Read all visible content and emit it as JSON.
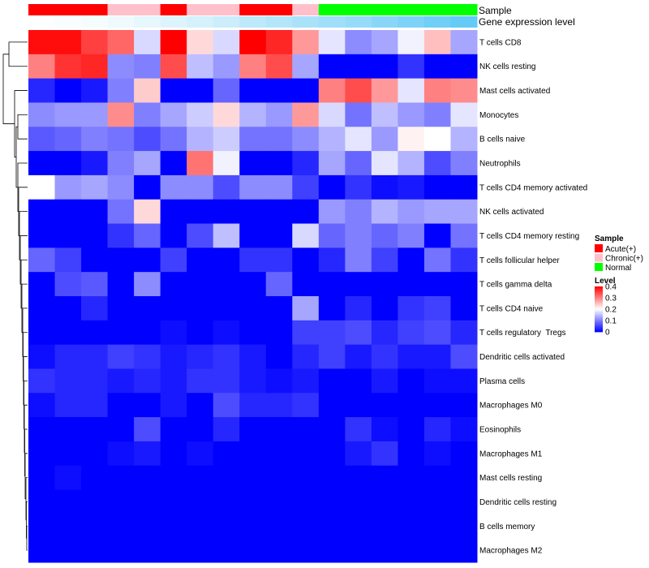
{
  "chart_data": {
    "type": "heatmap",
    "rows": [
      "T cells CD8",
      "NK cells resting",
      "Mast cells activated",
      "Monocytes",
      "B cells naive",
      "Neutrophils",
      "T cells CD4 memory activated",
      "NK cells activated",
      "T cells CD4 memory resting",
      "T cells follicular helper",
      "T cells gamma delta",
      "T cells CD4 naive",
      "T cells regulatory  Tregs",
      "Dendritic cells activated",
      "Plasma cells",
      "Macrophages M0",
      "Eosinophils",
      "Macrophages M1",
      "Mast cells resting",
      "Dendritic cells resting",
      "B cells memory",
      "Macrophages M2"
    ],
    "values": [
      [
        0.39,
        0.39,
        0.35,
        0.32,
        0.17,
        0.4,
        0.23,
        0.17,
        0.4,
        0.37,
        0.28,
        0.18,
        0.11,
        0.13,
        0.19,
        0.25,
        0.13
      ],
      [
        0.3,
        0.36,
        0.37,
        0.11,
        0.1,
        0.34,
        0.15,
        0.12,
        0.3,
        0.34,
        0.13,
        0.0,
        0.0,
        0.0,
        0.04,
        0.0,
        0.0
      ],
      [
        0.03,
        0.0,
        0.02,
        0.1,
        0.24,
        0.0,
        0.0,
        0.08,
        0.0,
        0.0,
        0.0,
        0.3,
        0.34,
        0.28,
        0.18,
        0.3,
        0.29
      ],
      [
        0.11,
        0.12,
        0.12,
        0.29,
        0.1,
        0.13,
        0.16,
        0.23,
        0.14,
        0.12,
        0.28,
        0.17,
        0.09,
        0.15,
        0.12,
        0.1,
        0.18
      ],
      [
        0.07,
        0.08,
        0.1,
        0.09,
        0.06,
        0.09,
        0.14,
        0.16,
        0.09,
        0.09,
        0.11,
        0.14,
        0.18,
        0.12,
        0.21,
        0.2,
        0.14
      ],
      [
        0.0,
        0.0,
        0.02,
        0.1,
        0.13,
        0.0,
        0.31,
        0.19,
        0.0,
        0.0,
        0.03,
        0.13,
        0.08,
        0.18,
        0.14,
        0.06,
        0.1
      ],
      [
        0.2,
        0.12,
        0.13,
        0.11,
        0.0,
        0.11,
        0.11,
        0.06,
        0.11,
        0.11,
        0.05,
        0.0,
        0.04,
        0.01,
        0.02,
        0.0,
        0.0
      ],
      [
        0.0,
        0.0,
        0.0,
        0.09,
        0.23,
        0.0,
        0.0,
        0.0,
        0.0,
        0.0,
        0.0,
        0.12,
        0.1,
        0.14,
        0.12,
        0.13,
        0.13
      ],
      [
        0.0,
        0.0,
        0.0,
        0.04,
        0.08,
        0.0,
        0.06,
        0.15,
        0.0,
        0.0,
        0.17,
        0.08,
        0.1,
        0.08,
        0.1,
        0.0,
        0.09
      ],
      [
        0.08,
        0.05,
        0.0,
        0.0,
        0.0,
        0.05,
        0.0,
        0.0,
        0.04,
        0.04,
        0.0,
        0.03,
        0.1,
        0.05,
        0.0,
        0.09,
        0.04
      ],
      [
        0.0,
        0.06,
        0.07,
        0.0,
        0.11,
        0.0,
        0.0,
        0.0,
        0.0,
        0.08,
        0.0,
        0.0,
        0.0,
        0.0,
        0.0,
        0.0,
        0.0
      ],
      [
        0.0,
        0.0,
        0.03,
        0.0,
        0.0,
        0.0,
        0.0,
        0.0,
        0.0,
        0.0,
        0.13,
        0.0,
        0.03,
        0.0,
        0.04,
        0.05,
        0.0
      ],
      [
        0.0,
        0.0,
        0.0,
        0.0,
        0.0,
        0.01,
        0.0,
        0.01,
        0.0,
        0.0,
        0.05,
        0.05,
        0.06,
        0.03,
        0.05,
        0.06,
        0.03
      ],
      [
        0.01,
        0.03,
        0.03,
        0.05,
        0.04,
        0.02,
        0.03,
        0.04,
        0.02,
        0.0,
        0.03,
        0.05,
        0.02,
        0.04,
        0.02,
        0.02,
        0.06
      ],
      [
        0.04,
        0.03,
        0.03,
        0.02,
        0.03,
        0.02,
        0.04,
        0.04,
        0.02,
        0.01,
        0.02,
        0.0,
        0.0,
        0.02,
        0.0,
        0.01,
        0.01
      ],
      [
        0.01,
        0.03,
        0.03,
        0.0,
        0.0,
        0.02,
        0.0,
        0.06,
        0.03,
        0.03,
        0.04,
        0.0,
        0.0,
        0.0,
        0.0,
        0.0,
        0.0
      ],
      [
        0.0,
        0.0,
        0.0,
        0.0,
        0.06,
        0.0,
        0.0,
        0.03,
        0.0,
        0.0,
        0.0,
        0.0,
        0.04,
        0.01,
        0.0,
        0.03,
        0.01
      ],
      [
        0.0,
        0.0,
        0.0,
        0.01,
        0.02,
        0.0,
        0.01,
        0.0,
        0.0,
        0.0,
        0.0,
        0.0,
        0.02,
        0.04,
        0.0,
        0.01,
        0.0
      ],
      [
        0.0,
        0.01,
        0.0,
        0.0,
        0.0,
        0.0,
        0.0,
        0.0,
        0.0,
        0.0,
        0.0,
        0.0,
        0.0,
        0.0,
        0.0,
        0.0,
        0.0
      ],
      [
        0.0,
        0.0,
        0.0,
        0.0,
        0.0,
        0.0,
        0.0,
        0.0,
        0.0,
        0.0,
        0.0,
        0.0,
        0.0,
        0.0,
        0.0,
        0.0,
        0.0
      ],
      [
        0.0,
        0.0,
        0.0,
        0.0,
        0.0,
        0.0,
        0.0,
        0.0,
        0.0,
        0.0,
        0.0,
        0.0,
        0.0,
        0.0,
        0.0,
        0.0,
        0.0
      ],
      [
        0.0,
        0.0,
        0.0,
        0.0,
        0.0,
        0.0,
        0.0,
        0.0,
        0.0,
        0.0,
        0.0,
        0.0,
        0.0,
        0.0,
        0.0,
        0.0,
        0.0
      ]
    ],
    "column_annotations": {
      "sample_label": "Sample",
      "expression_label": "Gene expression level",
      "sample": [
        "Acute(+)",
        "Acute(+)",
        "Acute(+)",
        "Chronic(+)",
        "Chronic(+)",
        "Acute(+)",
        "Chronic(+)",
        "Chronic(+)",
        "Acute(+)",
        "Acute(+)",
        "Chronic(+)",
        "Normal",
        "Normal",
        "Normal",
        "Normal",
        "Normal",
        "Normal"
      ],
      "expression_level": [
        0.02,
        0.04,
        0.06,
        0.1,
        0.15,
        0.2,
        0.26,
        0.32,
        0.4,
        0.46,
        0.52,
        0.58,
        0.64,
        0.72,
        0.8,
        0.88,
        0.95
      ]
    },
    "legend": {
      "sample_title": "Sample",
      "sample_entries": [
        {
          "label": "Acute(+)",
          "color": "#ff0000"
        },
        {
          "label": "Chronic(+)",
          "color": "#ffc0cb"
        },
        {
          "label": "Normal",
          "color": "#00ff00"
        }
      ],
      "level_title": "Level",
      "level_ticks": [
        "0.4",
        "0.3",
        "0.2",
        "0.1",
        "0"
      ],
      "level_tick_values": [
        0.4,
        0.3,
        0.2,
        0.1,
        0
      ]
    },
    "value_range": [
      0,
      0.4
    ],
    "colors": {
      "low": "#0000ff",
      "mid": "#ffffff",
      "high": "#ff0000",
      "expr_low": "#ffffff",
      "expr_high": "#5bc8f5"
    },
    "row_dendrogram": true
  }
}
